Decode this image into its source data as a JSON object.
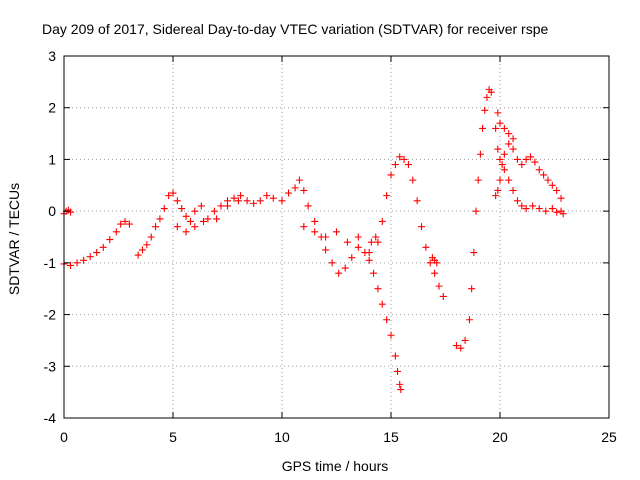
{
  "chart_data": {
    "type": "scatter",
    "title": "Day 209 of 2017, Sidereal Day-to-day VTEC variation (SDTVAR) for receiver rspe",
    "xlabel": "GPS time / hours",
    "ylabel": "SDTVAR / TECUs",
    "xlim": [
      0,
      25
    ],
    "ylim": [
      -4,
      3
    ],
    "x_ticks": [
      0,
      5,
      10,
      15,
      20,
      25
    ],
    "y_ticks": [
      -4,
      -3,
      -2,
      -1,
      0,
      1,
      2,
      3
    ],
    "x_tick_labels": [
      "0",
      "5",
      "10",
      "15",
      "20",
      "25"
    ],
    "y_tick_labels": [
      "-4",
      "-3",
      "-2",
      "-1",
      "0",
      "1",
      "2",
      "3"
    ],
    "grid": true,
    "marker": "+",
    "series": [
      {
        "name": "rspe",
        "color": "#ff0000",
        "points": [
          [
            0.0,
            -0.05
          ],
          [
            0.1,
            0.0
          ],
          [
            0.2,
            0.02
          ],
          [
            0.3,
            -0.02
          ],
          [
            0.0,
            -1.02
          ],
          [
            0.3,
            -1.05
          ],
          [
            0.6,
            -1.0
          ],
          [
            0.9,
            -0.95
          ],
          [
            1.2,
            -0.88
          ],
          [
            1.5,
            -0.8
          ],
          [
            1.8,
            -0.7
          ],
          [
            2.1,
            -0.55
          ],
          [
            2.4,
            -0.4
          ],
          [
            2.6,
            -0.25
          ],
          [
            2.8,
            -0.2
          ],
          [
            3.0,
            -0.25
          ],
          [
            3.4,
            -0.85
          ],
          [
            3.6,
            -0.75
          ],
          [
            3.8,
            -0.65
          ],
          [
            4.0,
            -0.5
          ],
          [
            4.2,
            -0.3
          ],
          [
            4.4,
            -0.15
          ],
          [
            4.6,
            0.05
          ],
          [
            4.8,
            0.3
          ],
          [
            5.0,
            0.35
          ],
          [
            5.2,
            0.2
          ],
          [
            5.4,
            0.05
          ],
          [
            5.6,
            -0.1
          ],
          [
            5.8,
            -0.2
          ],
          [
            6.0,
            0.0
          ],
          [
            6.3,
            0.1
          ],
          [
            6.6,
            -0.15
          ],
          [
            6.9,
            0.0
          ],
          [
            7.2,
            0.1
          ],
          [
            7.5,
            0.2
          ],
          [
            7.8,
            0.25
          ],
          [
            8.1,
            0.3
          ],
          [
            8.4,
            0.2
          ],
          [
            8.7,
            0.15
          ],
          [
            9.0,
            0.2
          ],
          [
            9.3,
            0.3
          ],
          [
            9.6,
            0.25
          ],
          [
            10.0,
            0.2
          ],
          [
            10.3,
            0.35
          ],
          [
            10.6,
            0.45
          ],
          [
            10.8,
            0.6
          ],
          [
            11.0,
            0.4
          ],
          [
            11.2,
            0.1
          ],
          [
            11.5,
            -0.2
          ],
          [
            11.8,
            -0.5
          ],
          [
            12.0,
            -0.75
          ],
          [
            12.3,
            -1.0
          ],
          [
            12.6,
            -1.2
          ],
          [
            12.9,
            -1.1
          ],
          [
            13.2,
            -0.9
          ],
          [
            13.5,
            -0.7
          ],
          [
            13.8,
            -0.8
          ],
          [
            14.1,
            -0.6
          ],
          [
            14.3,
            -0.5
          ],
          [
            5.2,
            -0.3
          ],
          [
            5.6,
            -0.4
          ],
          [
            6.0,
            -0.3
          ],
          [
            6.4,
            -0.2
          ],
          [
            7.0,
            -0.15
          ],
          [
            7.5,
            0.1
          ],
          [
            8.0,
            0.2
          ],
          [
            11.0,
            -0.3
          ],
          [
            11.5,
            -0.4
          ],
          [
            12.0,
            -0.5
          ],
          [
            12.5,
            -0.4
          ],
          [
            13.0,
            -0.6
          ],
          [
            13.5,
            -0.5
          ],
          [
            14.0,
            -0.8
          ],
          [
            14.0,
            -0.95
          ],
          [
            14.2,
            -1.2
          ],
          [
            14.4,
            -1.5
          ],
          [
            14.6,
            -1.8
          ],
          [
            14.8,
            -2.1
          ],
          [
            15.0,
            -2.4
          ],
          [
            15.2,
            -2.8
          ],
          [
            15.3,
            -3.1
          ],
          [
            15.4,
            -3.35
          ],
          [
            15.45,
            -3.45
          ],
          [
            14.4,
            -0.6
          ],
          [
            14.6,
            -0.2
          ],
          [
            14.8,
            0.3
          ],
          [
            15.0,
            0.7
          ],
          [
            15.2,
            0.9
          ],
          [
            15.4,
            1.05
          ],
          [
            15.6,
            1.0
          ],
          [
            15.8,
            0.9
          ],
          [
            16.0,
            0.6
          ],
          [
            16.2,
            0.2
          ],
          [
            16.4,
            -0.3
          ],
          [
            16.6,
            -0.7
          ],
          [
            16.8,
            -1.0
          ],
          [
            17.0,
            -1.2
          ],
          [
            17.2,
            -1.45
          ],
          [
            17.4,
            -1.65
          ],
          [
            16.9,
            -0.9
          ],
          [
            17.0,
            -0.95
          ],
          [
            17.1,
            -1.0
          ],
          [
            18.0,
            -2.6
          ],
          [
            18.2,
            -2.65
          ],
          [
            18.4,
            -2.5
          ],
          [
            18.6,
            -2.1
          ],
          [
            18.7,
            -1.5
          ],
          [
            18.8,
            -0.8
          ],
          [
            18.9,
            0.0
          ],
          [
            19.0,
            0.6
          ],
          [
            19.1,
            1.1
          ],
          [
            19.2,
            1.6
          ],
          [
            19.3,
            1.95
          ],
          [
            19.4,
            2.2
          ],
          [
            19.5,
            2.35
          ],
          [
            19.6,
            2.3
          ],
          [
            19.8,
            1.6
          ],
          [
            19.9,
            1.2
          ],
          [
            20.0,
            1.0
          ],
          [
            20.1,
            0.9
          ],
          [
            20.2,
            1.1
          ],
          [
            20.4,
            1.3
          ],
          [
            20.6,
            1.2
          ],
          [
            20.8,
            1.0
          ],
          [
            21.0,
            0.9
          ],
          [
            21.2,
            1.0
          ],
          [
            21.4,
            1.05
          ],
          [
            21.6,
            0.95
          ],
          [
            21.8,
            0.8
          ],
          [
            22.0,
            0.7
          ],
          [
            22.2,
            0.6
          ],
          [
            22.4,
            0.5
          ],
          [
            22.6,
            0.4
          ],
          [
            22.8,
            0.25
          ],
          [
            19.9,
            1.9
          ],
          [
            20.0,
            1.7
          ],
          [
            20.2,
            1.6
          ],
          [
            20.4,
            1.5
          ],
          [
            20.6,
            1.4
          ],
          [
            19.8,
            0.3
          ],
          [
            19.9,
            0.4
          ],
          [
            20.0,
            0.6
          ],
          [
            20.2,
            0.8
          ],
          [
            20.4,
            0.6
          ],
          [
            20.6,
            0.4
          ],
          [
            20.8,
            0.2
          ],
          [
            21.0,
            0.1
          ],
          [
            21.2,
            0.05
          ],
          [
            21.5,
            0.1
          ],
          [
            21.8,
            0.05
          ],
          [
            22.1,
            0.0
          ],
          [
            22.4,
            0.05
          ],
          [
            22.6,
            -0.02
          ],
          [
            22.8,
            0.0
          ],
          [
            22.9,
            -0.05
          ]
        ]
      }
    ]
  }
}
